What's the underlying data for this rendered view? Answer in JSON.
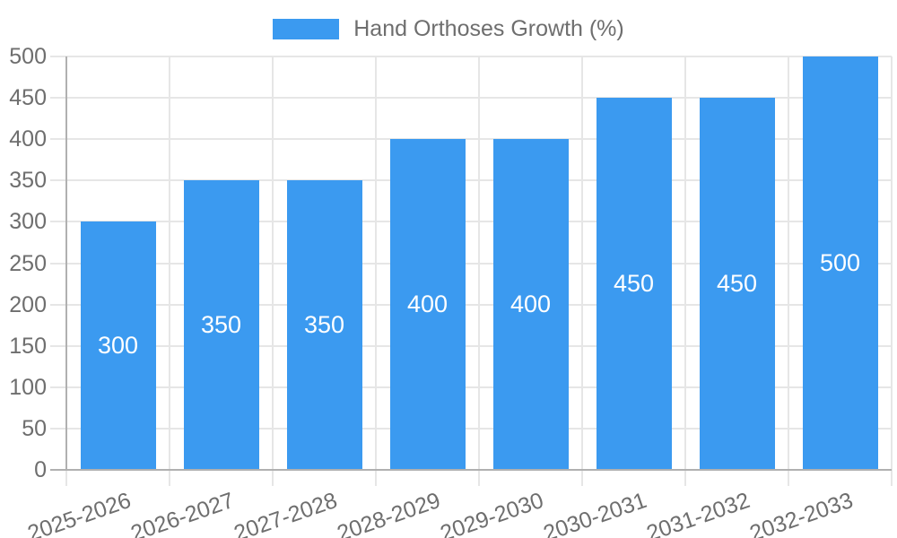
{
  "chart_data": {
    "type": "bar",
    "title": "",
    "legend_position": "top",
    "grid": true,
    "categories": [
      "2025-2026",
      "2026-2027",
      "2027-2028",
      "2028-2029",
      "2029-2030",
      "2030-2031",
      "2031-2032",
      "2032-2033"
    ],
    "series": [
      {
        "name": "Hand Orthoses Growth (%)",
        "values": [
          300,
          350,
          350,
          400,
          400,
          450,
          450,
          500
        ]
      }
    ],
    "data_labels": [
      "300",
      "350",
      "350",
      "400",
      "400",
      "450",
      "450",
      "500"
    ],
    "xlabel": "",
    "ylabel": "",
    "ylim": [
      0,
      500
    ],
    "yticks": [
      "0",
      "50",
      "100",
      "150",
      "200",
      "250",
      "300",
      "350",
      "400",
      "450",
      "500"
    ],
    "colors": {
      "bar": "#3b9af0",
      "grid": "#e6e6e6",
      "axis": "#b0b0b0",
      "text": "#6e6e6e",
      "data_label": "#ffffff",
      "background": "#ffffff"
    }
  }
}
